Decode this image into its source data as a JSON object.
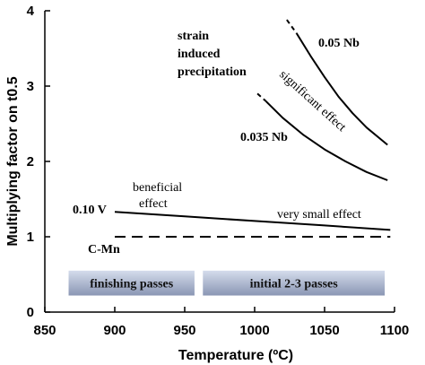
{
  "chart_data": {
    "type": "line",
    "title": "",
    "xlabel": "Temperature (ºC)",
    "ylabel": "Multiplying factor on t0.5",
    "xlim": [
      850,
      1100
    ],
    "ylim": [
      0,
      4
    ],
    "xticks": [
      "850",
      "900",
      "950",
      "1000",
      "1050",
      "1100"
    ],
    "yticks": [
      "0",
      "1",
      "2",
      "3",
      "4"
    ],
    "grid": false,
    "series": [
      {
        "name": "0.05 Nb",
        "style": "solid",
        "color": "#000000",
        "x": [
          1030,
          1040,
          1050,
          1060,
          1070,
          1080,
          1095
        ],
        "y": [
          3.7,
          3.4,
          3.12,
          2.86,
          2.64,
          2.45,
          2.22
        ],
        "dashed_start": [
          [
            1023,
            3.88
          ],
          [
            1030,
            3.7
          ]
        ]
      },
      {
        "name": "0.035 Nb",
        "style": "solid",
        "color": "#000000",
        "x": [
          1008,
          1020,
          1035,
          1050,
          1065,
          1080,
          1095
        ],
        "y": [
          2.8,
          2.58,
          2.35,
          2.16,
          2.0,
          1.86,
          1.75
        ],
        "dashed_start": [
          [
            1002,
            2.9
          ],
          [
            1008,
            2.8
          ]
        ]
      },
      {
        "name": "0.10 V",
        "style": "solid",
        "color": "#000000",
        "x": [
          900,
          950,
          1000,
          1050,
          1097
        ],
        "y": [
          1.33,
          1.27,
          1.21,
          1.15,
          1.09
        ]
      },
      {
        "name": "C-Mn",
        "style": "dashed",
        "color": "#000000",
        "x": [
          900,
          1097
        ],
        "y": [
          1.0,
          1.0
        ]
      }
    ],
    "annotations": {
      "strain_induced": [
        "strain",
        "induced",
        "precipitation"
      ],
      "significant_effect": "significant effect",
      "beneficial_effect": [
        "beneficial",
        "effect"
      ],
      "very_small_effect": "very small effect"
    },
    "bands": [
      {
        "label": "finishing passes",
        "x_range": [
          867,
          957
        ],
        "y_range": [
          0.22,
          0.55
        ]
      },
      {
        "label": "initial 2-3 passes",
        "x_range": [
          963,
          1093
        ],
        "y_range": [
          0.22,
          0.55
        ]
      }
    ],
    "colors": {
      "band_light": "#d4dcec",
      "band_dark": "#8a96b4"
    }
  }
}
